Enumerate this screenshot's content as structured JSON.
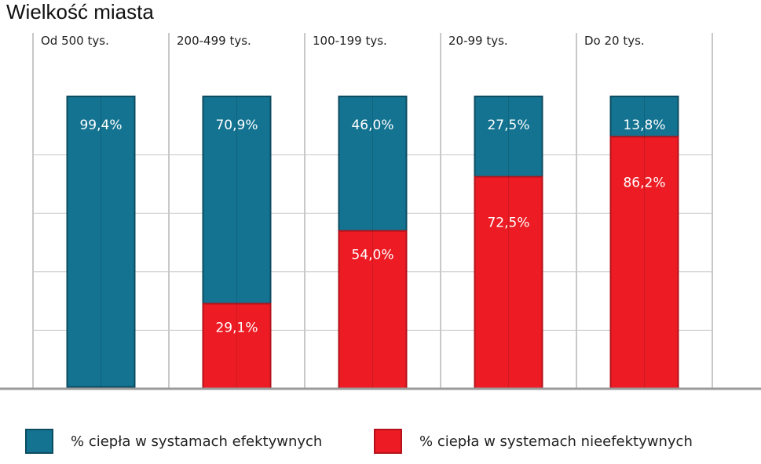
{
  "title": "Wielkość miasta",
  "colors": {
    "efficient": "#137391",
    "efficient_border": "#0d4c61",
    "inefficient": "#ed1c24",
    "inefficient_border": "#b3121a",
    "grid": "#c8c8c8",
    "axis": "#9a9a9a"
  },
  "legend": {
    "efficient_label": "% ciepła w systamach efektywnych",
    "inefficient_label": "% ciepła w systemach nieefektywnych"
  },
  "chart_data": {
    "type": "bar",
    "stacked": true,
    "categories": [
      "Od 500 tys.",
      "200-499 tys.",
      "100-199 tys.",
      "20-99 tys.",
      "Do 20 tys."
    ],
    "series": [
      {
        "name": "% ciepła w systamach efektywnych",
        "values": [
          99.4,
          70.9,
          46.0,
          27.5,
          13.8
        ],
        "labels": [
          "99,4%",
          "70,9%",
          "46,0%",
          "27,5%",
          "13,8%"
        ]
      },
      {
        "name": "% ciepła w systemach nieefektywnych",
        "values": [
          0.6,
          29.1,
          54.0,
          72.5,
          86.2
        ],
        "labels": [
          "",
          "29,1%",
          "54,0%",
          "72,5%",
          "86,2%"
        ]
      }
    ],
    "ylim": [
      0,
      100
    ],
    "grid": true,
    "legend_position": "bottom"
  }
}
